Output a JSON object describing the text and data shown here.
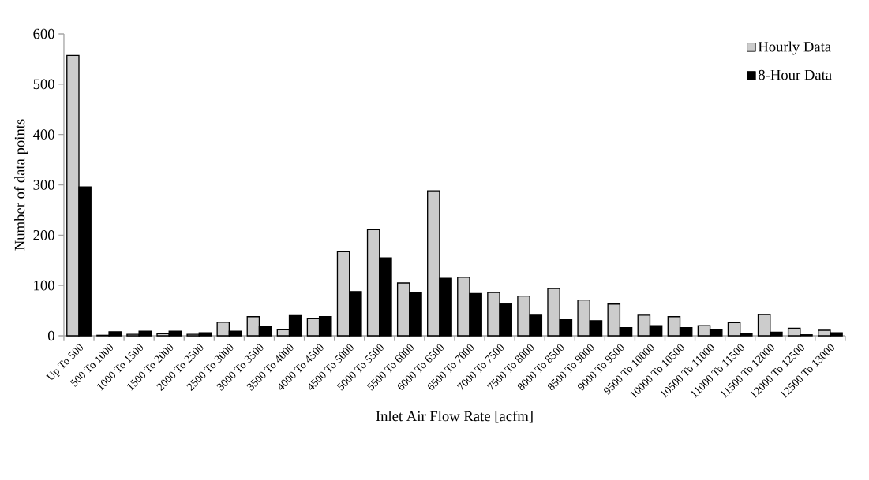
{
  "chart_data": {
    "type": "bar",
    "xlabel": "Inlet Air Flow Rate [acfm]",
    "ylabel": "Number of data points",
    "categories": [
      "Up To 500",
      "500 To 1000",
      "1000 To 1500",
      "1500 To 2000",
      "2000 To 2500",
      "2500 To 3000",
      "3000 To 3500",
      "3500 To 4000",
      "4000 To 4500",
      "4500 To 5000",
      "5000 To 5500",
      "5500 To 6000",
      "6000 To 6500",
      "6500 To 7000",
      "7000 To 7500",
      "7500 To 8000",
      "8000 To 8500",
      "8500 To 9000",
      "9000 To 9500",
      "9500 To 10000",
      "10000 To 10500",
      "10500 To 11000",
      "11000 To 11500",
      "11500 To 12000",
      "12000 To 12500",
      "12500 To 13000"
    ],
    "series": [
      {
        "name": "Hourly Data",
        "color": "#cccccc",
        "values": [
          557,
          1,
          3,
          4,
          3,
          27,
          38,
          12,
          34,
          167,
          211,
          105,
          288,
          116,
          86,
          79,
          94,
          71,
          63,
          41,
          38,
          20,
          26,
          42,
          15,
          11
        ]
      },
      {
        "name": "8-Hour Data",
        "color": "#000000",
        "values": [
          296,
          8,
          9,
          9,
          6,
          9,
          19,
          40,
          38,
          88,
          155,
          86,
          114,
          84,
          64,
          41,
          32,
          30,
          16,
          20,
          16,
          12,
          4,
          7,
          2,
          6
        ]
      }
    ],
    "ylim": [
      0,
      600
    ],
    "yticks": [
      0,
      100,
      200,
      300,
      400,
      500,
      600
    ],
    "legend": "top right"
  }
}
